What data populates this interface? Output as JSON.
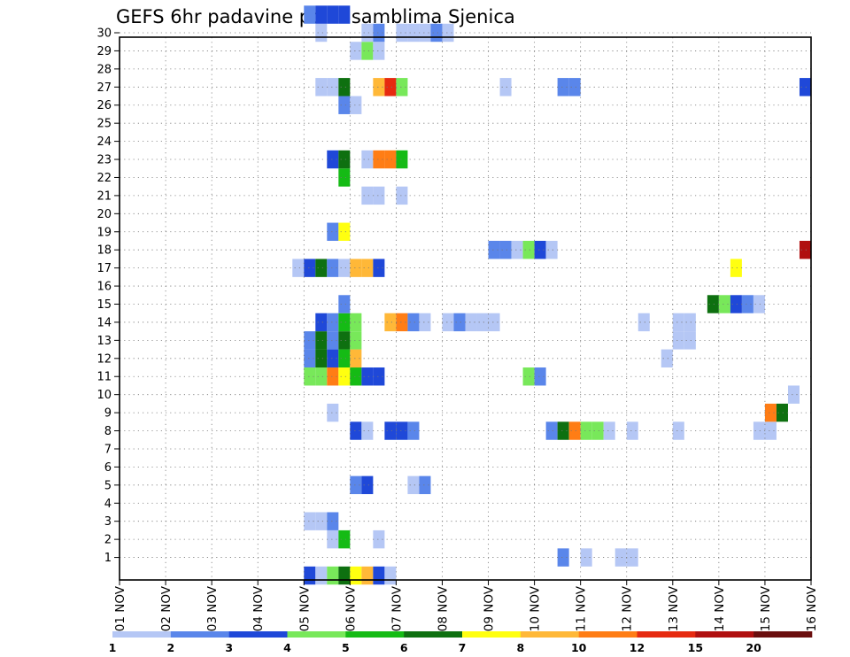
{
  "chart_data": {
    "type": "heatmap",
    "title": "GEFS 6hr padavine po ansamblima Sjenica",
    "xlabel": "",
    "ylabel": "",
    "x_tick_labels": [
      "01 NOV",
      "02 NOV",
      "03 NOV",
      "04 NOV",
      "05 NOV",
      "06 NOV",
      "07 NOV",
      "08 NOV",
      "09 NOV",
      "10 NOV",
      "11 NOV",
      "12 NOV",
      "13 NOV",
      "14 NOV",
      "15 NOV",
      "16 NOV"
    ],
    "xlim": [
      0,
      15
    ],
    "y_tick_labels": [
      "1",
      "2",
      "3",
      "4",
      "5",
      "6",
      "7",
      "8",
      "9",
      "10",
      "11",
      "12",
      "13",
      "14",
      "15",
      "16",
      "17",
      "18",
      "19",
      "20",
      "21",
      "22",
      "23",
      "24",
      "25",
      "26",
      "27",
      "28",
      "29",
      "30"
    ],
    "ylim": [
      0,
      30
    ],
    "grid": true,
    "colorbar": {
      "levels": [
        "1",
        "2",
        "3",
        "4",
        "5",
        "6",
        "7",
        "8",
        "10",
        "12",
        "15",
        "20"
      ],
      "colors": [
        "#b5c7f5",
        "#5a86ea",
        "#1f48d8",
        "#78e85a",
        "#15bb15",
        "#0e7010",
        "#ffff10",
        "#ffb838",
        "#ff7d15",
        "#e62a10",
        "#b01010",
        "#6a0e0e"
      ]
    },
    "cells": [
      {
        "day": 4.0,
        "member": 0,
        "level": 3
      },
      {
        "day": 4.25,
        "member": 0,
        "level": 1
      },
      {
        "day": 4.5,
        "member": 0,
        "level": 4
      },
      {
        "day": 4.75,
        "member": 0,
        "level": 6
      },
      {
        "day": 5.0,
        "member": 0,
        "level": 7
      },
      {
        "day": 5.25,
        "member": 0,
        "level": 8
      },
      {
        "day": 5.5,
        "member": 0,
        "level": 3
      },
      {
        "day": 5.75,
        "member": 0,
        "level": 1
      },
      {
        "day": 9.5,
        "member": 1,
        "level": 2
      },
      {
        "day": 10.0,
        "member": 1,
        "level": 1
      },
      {
        "day": 10.75,
        "member": 1,
        "level": 1
      },
      {
        "day": 11.0,
        "member": 1,
        "level": 1
      },
      {
        "day": 4.5,
        "member": 2,
        "level": 1
      },
      {
        "day": 4.75,
        "member": 2,
        "level": 5
      },
      {
        "day": 5.5,
        "member": 2,
        "level": 1
      },
      {
        "day": 4.0,
        "member": 3,
        "level": 1
      },
      {
        "day": 4.25,
        "member": 3,
        "level": 1
      },
      {
        "day": 4.5,
        "member": 3,
        "level": 2
      },
      {
        "day": 5.0,
        "member": 5,
        "level": 2
      },
      {
        "day": 5.25,
        "member": 5,
        "level": 3
      },
      {
        "day": 6.25,
        "member": 5,
        "level": 1
      },
      {
        "day": 6.5,
        "member": 5,
        "level": 2
      },
      {
        "day": 5.0,
        "member": 8,
        "level": 3
      },
      {
        "day": 5.25,
        "member": 8,
        "level": 1
      },
      {
        "day": 5.75,
        "member": 8,
        "level": 3
      },
      {
        "day": 6.0,
        "member": 8,
        "level": 3
      },
      {
        "day": 6.25,
        "member": 8,
        "level": 2
      },
      {
        "day": 9.25,
        "member": 8,
        "level": 2
      },
      {
        "day": 9.5,
        "member": 8,
        "level": 6
      },
      {
        "day": 9.75,
        "member": 8,
        "level": 9
      },
      {
        "day": 10.0,
        "member": 8,
        "level": 4
      },
      {
        "day": 10.25,
        "member": 8,
        "level": 4
      },
      {
        "day": 10.5,
        "member": 8,
        "level": 1
      },
      {
        "day": 11.0,
        "member": 8,
        "level": 1
      },
      {
        "day": 12.0,
        "member": 8,
        "level": 1
      },
      {
        "day": 13.75,
        "member": 8,
        "level": 1
      },
      {
        "day": 14.0,
        "member": 8,
        "level": 1
      },
      {
        "day": 4.5,
        "member": 9,
        "level": 1
      },
      {
        "day": 14.0,
        "member": 9,
        "level": 9
      },
      {
        "day": 14.25,
        "member": 9,
        "level": 6
      },
      {
        "day": 14.5,
        "member": 10,
        "level": 1
      },
      {
        "day": 4.0,
        "member": 11,
        "level": 4
      },
      {
        "day": 4.25,
        "member": 11,
        "level": 4
      },
      {
        "day": 4.5,
        "member": 11,
        "level": 9
      },
      {
        "day": 4.75,
        "member": 11,
        "level": 7
      },
      {
        "day": 5.0,
        "member": 11,
        "level": 5
      },
      {
        "day": 5.25,
        "member": 11,
        "level": 3
      },
      {
        "day": 5.5,
        "member": 11,
        "level": 3
      },
      {
        "day": 8.75,
        "member": 11,
        "level": 4
      },
      {
        "day": 9.0,
        "member": 11,
        "level": 2
      },
      {
        "day": 4.0,
        "member": 12,
        "level": 2
      },
      {
        "day": 4.25,
        "member": 12,
        "level": 6
      },
      {
        "day": 4.5,
        "member": 12,
        "level": 3
      },
      {
        "day": 4.75,
        "member": 12,
        "level": 5
      },
      {
        "day": 5.0,
        "member": 12,
        "level": 8
      },
      {
        "day": 11.75,
        "member": 12,
        "level": 1
      },
      {
        "day": 4.0,
        "member": 13,
        "level": 2
      },
      {
        "day": 4.25,
        "member": 13,
        "level": 6
      },
      {
        "day": 4.5,
        "member": 13,
        "level": 2
      },
      {
        "day": 4.75,
        "member": 13,
        "level": 6
      },
      {
        "day": 5.0,
        "member": 13,
        "level": 4
      },
      {
        "day": 12.0,
        "member": 13,
        "level": 1
      },
      {
        "day": 12.25,
        "member": 13,
        "level": 1
      },
      {
        "day": 4.25,
        "member": 14,
        "level": 3
      },
      {
        "day": 4.5,
        "member": 14,
        "level": 2
      },
      {
        "day": 4.75,
        "member": 14,
        "level": 5
      },
      {
        "day": 5.0,
        "member": 14,
        "level": 4
      },
      {
        "day": 5.75,
        "member": 14,
        "level": 8
      },
      {
        "day": 6.0,
        "member": 14,
        "level": 9
      },
      {
        "day": 6.25,
        "member": 14,
        "level": 2
      },
      {
        "day": 6.5,
        "member": 14,
        "level": 1
      },
      {
        "day": 7.0,
        "member": 14,
        "level": 1
      },
      {
        "day": 7.25,
        "member": 14,
        "level": 2
      },
      {
        "day": 7.5,
        "member": 14,
        "level": 1
      },
      {
        "day": 7.75,
        "member": 14,
        "level": 1
      },
      {
        "day": 8.0,
        "member": 14,
        "level": 1
      },
      {
        "day": 11.25,
        "member": 14,
        "level": 1
      },
      {
        "day": 12.0,
        "member": 14,
        "level": 1
      },
      {
        "day": 12.25,
        "member": 14,
        "level": 1
      },
      {
        "day": 4.75,
        "member": 15,
        "level": 2
      },
      {
        "day": 12.75,
        "member": 15,
        "level": 6
      },
      {
        "day": 13.0,
        "member": 15,
        "level": 4
      },
      {
        "day": 13.25,
        "member": 15,
        "level": 3
      },
      {
        "day": 13.5,
        "member": 15,
        "level": 2
      },
      {
        "day": 13.75,
        "member": 15,
        "level": 1
      },
      {
        "day": 3.75,
        "member": 17,
        "level": 1
      },
      {
        "day": 4.0,
        "member": 17,
        "level": 3
      },
      {
        "day": 4.25,
        "member": 17,
        "level": 6
      },
      {
        "day": 4.5,
        "member": 17,
        "level": 2
      },
      {
        "day": 4.75,
        "member": 17,
        "level": 1
      },
      {
        "day": 5.0,
        "member": 17,
        "level": 8
      },
      {
        "day": 5.25,
        "member": 17,
        "level": 8
      },
      {
        "day": 5.5,
        "member": 17,
        "level": 3
      },
      {
        "day": 13.25,
        "member": 17,
        "level": 7
      },
      {
        "day": 8.0,
        "member": 18,
        "level": 2
      },
      {
        "day": 8.25,
        "member": 18,
        "level": 2
      },
      {
        "day": 8.5,
        "member": 18,
        "level": 1
      },
      {
        "day": 8.75,
        "member": 18,
        "level": 4
      },
      {
        "day": 9.0,
        "member": 18,
        "level": 3
      },
      {
        "day": 9.25,
        "member": 18,
        "level": 1
      },
      {
        "day": 14.75,
        "member": 18,
        "level": 11
      },
      {
        "day": 4.5,
        "member": 19,
        "level": 2
      },
      {
        "day": 4.75,
        "member": 19,
        "level": 7
      },
      {
        "day": 5.25,
        "member": 21,
        "level": 1
      },
      {
        "day": 5.5,
        "member": 21,
        "level": 1
      },
      {
        "day": 6.0,
        "member": 21,
        "level": 1
      },
      {
        "day": 4.75,
        "member": 22,
        "level": 5
      },
      {
        "day": 4.5,
        "member": 23,
        "level": 3
      },
      {
        "day": 4.75,
        "member": 23,
        "level": 6
      },
      {
        "day": 5.25,
        "member": 23,
        "level": 1
      },
      {
        "day": 5.5,
        "member": 23,
        "level": 9
      },
      {
        "day": 5.75,
        "member": 23,
        "level": 9
      },
      {
        "day": 6.0,
        "member": 23,
        "level": 5
      },
      {
        "day": 4.75,
        "member": 26,
        "level": 2
      },
      {
        "day": 5.0,
        "member": 26,
        "level": 1
      },
      {
        "day": 4.25,
        "member": 27,
        "level": 1
      },
      {
        "day": 4.5,
        "member": 27,
        "level": 1
      },
      {
        "day": 4.75,
        "member": 27,
        "level": 6
      },
      {
        "day": 5.5,
        "member": 27,
        "level": 8
      },
      {
        "day": 5.75,
        "member": 27,
        "level": 10
      },
      {
        "day": 6.0,
        "member": 27,
        "level": 4
      },
      {
        "day": 8.25,
        "member": 27,
        "level": 1
      },
      {
        "day": 9.5,
        "member": 27,
        "level": 2
      },
      {
        "day": 9.75,
        "member": 27,
        "level": 2
      },
      {
        "day": 14.75,
        "member": 27,
        "level": 3
      },
      {
        "day": 5.0,
        "member": 29,
        "level": 1
      },
      {
        "day": 5.25,
        "member": 29,
        "level": 4
      },
      {
        "day": 5.5,
        "member": 29,
        "level": 1
      },
      {
        "day": 4.25,
        "member": 30,
        "level": 1
      },
      {
        "day": 5.25,
        "member": 30,
        "level": 1
      },
      {
        "day": 5.5,
        "member": 30,
        "level": 2
      },
      {
        "day": 6.0,
        "member": 30,
        "level": 1
      },
      {
        "day": 6.25,
        "member": 30,
        "level": 1
      },
      {
        "day": 6.5,
        "member": 30,
        "level": 1
      },
      {
        "day": 6.75,
        "member": 30,
        "level": 2
      },
      {
        "day": 7.0,
        "member": 30,
        "level": 1
      },
      {
        "day": 4.0,
        "member": 31,
        "level": 2
      },
      {
        "day": 4.25,
        "member": 31,
        "level": 3
      },
      {
        "day": 4.5,
        "member": 31,
        "level": 3
      },
      {
        "day": 4.75,
        "member": 31,
        "level": 3
      }
    ]
  }
}
